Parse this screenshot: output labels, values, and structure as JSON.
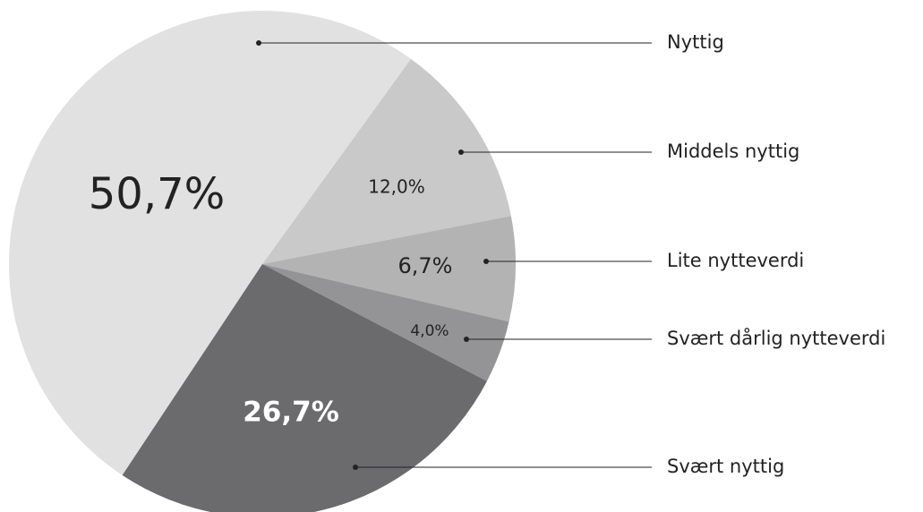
{
  "chart_data": {
    "type": "pie",
    "categories": [
      "Middels nyttig",
      "Lite nytteverdi",
      "Svært dårlig nytteverdi",
      "Svært nyttig",
      "Nyttig"
    ],
    "values": [
      12.0,
      6.7,
      4.0,
      26.7,
      50.7
    ],
    "value_labels": [
      "12,0%",
      "6,7%",
      "4,0%",
      "26,7%",
      "50,7%"
    ],
    "colors": [
      "#c9c9ca",
      "#b3b3b4",
      "#949496",
      "#6b6b6e",
      "#e1e1e2"
    ]
  }
}
